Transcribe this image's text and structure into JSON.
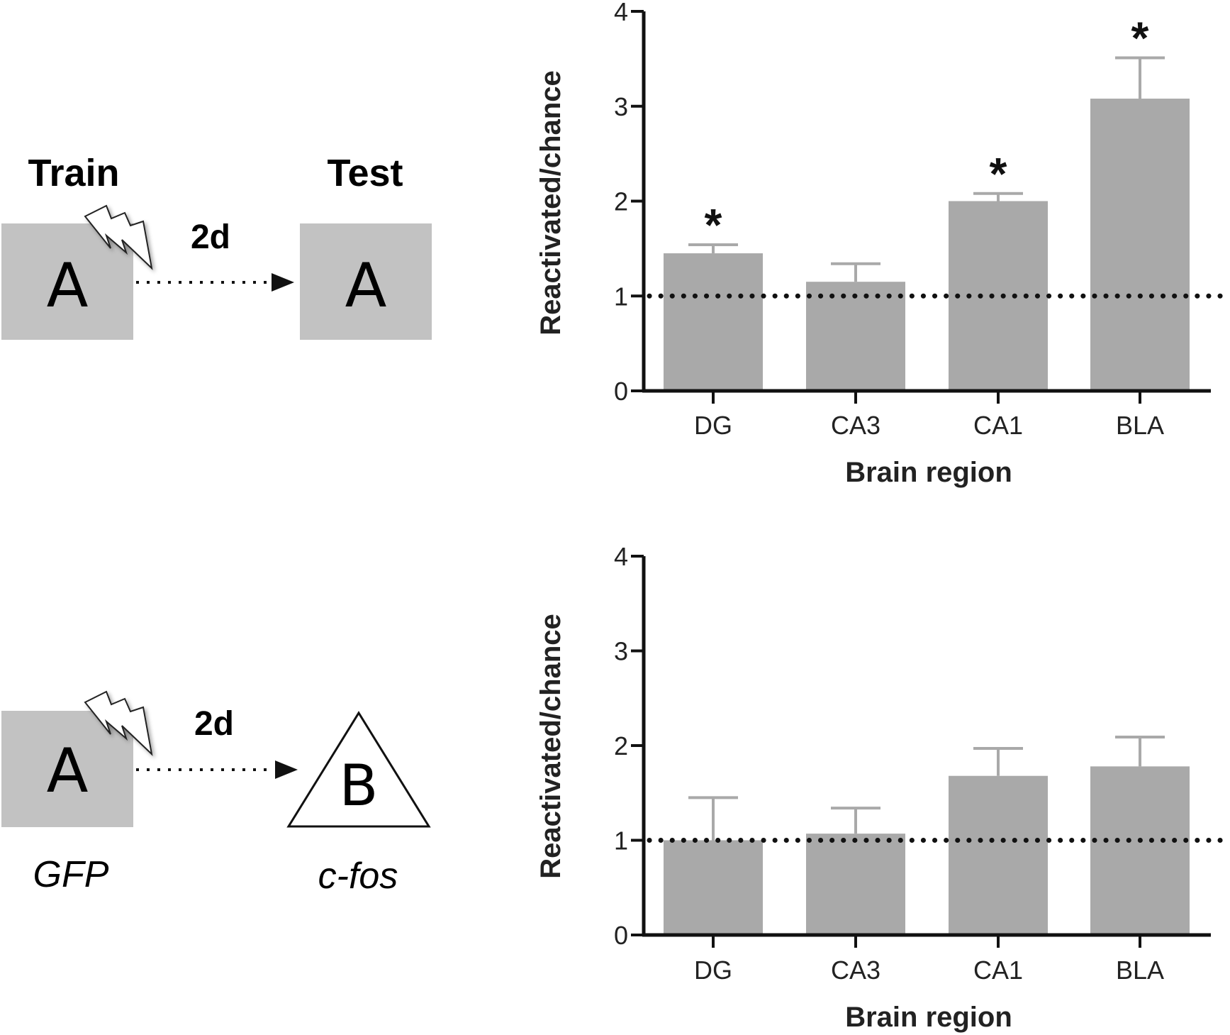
{
  "diagram": {
    "top": {
      "train_label": "Train",
      "test_label": "Test",
      "interval_label": "2d",
      "train_context": "A",
      "test_context": "A"
    },
    "bottom": {
      "interval_label": "2d",
      "train_context": "A",
      "test_context": "B",
      "train_marker": "GFP",
      "test_marker": "c-fos"
    },
    "colors": {
      "context_fill": "#c2c2c2",
      "shock_fill": "#ffffff"
    }
  },
  "chart_data": [
    {
      "type": "bar",
      "categories": [
        "DG",
        "CA3",
        "CA1",
        "BLA"
      ],
      "values": [
        1.45,
        1.15,
        2.0,
        3.08
      ],
      "errors": [
        0.09,
        0.19,
        0.08,
        0.43
      ],
      "significance": [
        "*",
        "",
        "*",
        "*"
      ],
      "reference_line": 1,
      "xlabel": "Brain region",
      "ylabel": "Reactivated/chance",
      "ylim": [
        0,
        4
      ],
      "yticks": [
        "0",
        "1",
        "2",
        "3",
        "4"
      ],
      "bar_color": "#a9a9a9",
      "error_color": "#a9a9a9"
    },
    {
      "type": "bar",
      "categories": [
        "DG",
        "CA3",
        "CA1",
        "BLA"
      ],
      "values": [
        1.0,
        1.07,
        1.68,
        1.78
      ],
      "errors": [
        0.45,
        0.27,
        0.29,
        0.31
      ],
      "significance": [
        "",
        "",
        "",
        ""
      ],
      "reference_line": 1,
      "xlabel": "Brain region",
      "ylabel": "Reactivated/chance",
      "ylim": [
        0,
        4
      ],
      "yticks": [
        "0",
        "1",
        "2",
        "3",
        "4"
      ],
      "bar_color": "#a9a9a9",
      "error_color": "#a9a9a9"
    }
  ]
}
